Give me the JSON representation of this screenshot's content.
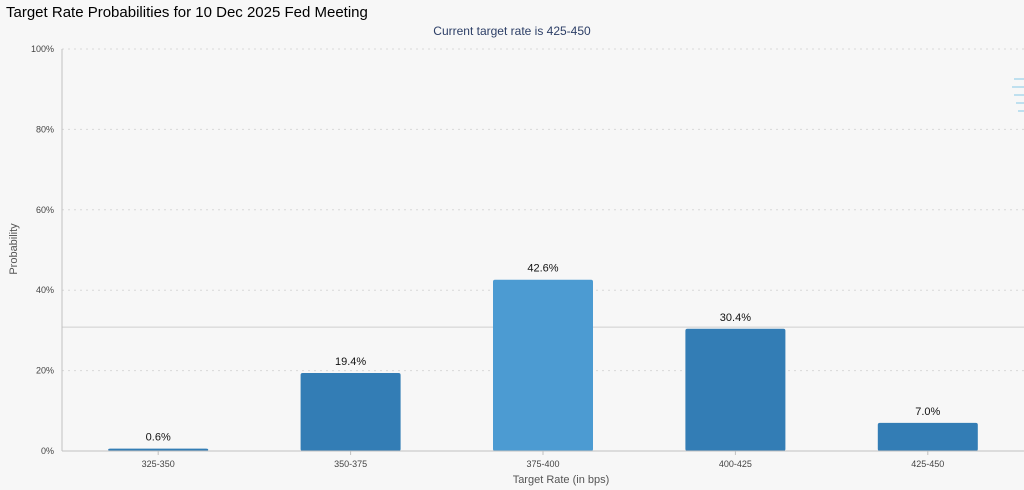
{
  "page_title": "Target Rate Probabilities for 10 Dec 2025 Fed Meeting",
  "colors": {
    "bar": "#337db5",
    "bar_highlight": "#4c9bd2",
    "grid": "#d8d8d8",
    "axis": "#c0c0c0"
  },
  "chart_data": {
    "type": "bar",
    "title": "Current target rate is 425-450",
    "xlabel": "Target Rate (in bps)",
    "ylabel": "Probability",
    "categories": [
      "325-350",
      "350-375",
      "375-400",
      "400-425",
      "425-450"
    ],
    "values": [
      0.6,
      19.4,
      42.6,
      30.4,
      7.0
    ],
    "data_labels": [
      "0.6%",
      "19.4%",
      "42.6%",
      "30.4%",
      "7.0%"
    ],
    "highlighted_category": "375-400",
    "ylim": [
      0,
      100
    ],
    "yticks": [
      0,
      20,
      40,
      60,
      80,
      100
    ],
    "ytick_labels": [
      "0%",
      "20%",
      "40%",
      "60%",
      "80%",
      "100%"
    ],
    "reference_line_value": 30.8,
    "grid": true
  }
}
